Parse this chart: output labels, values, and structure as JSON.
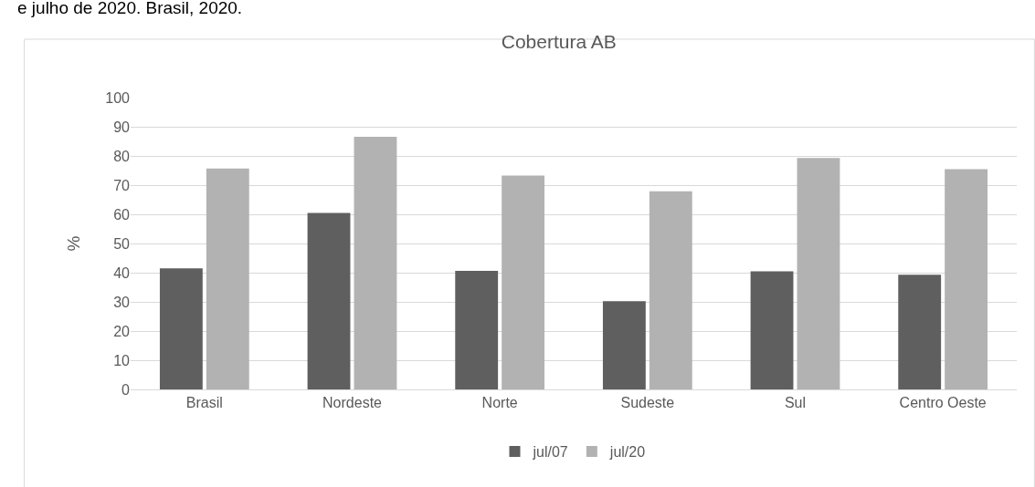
{
  "chart_data": {
    "type": "bar",
    "title": "Cobertura AB",
    "ylabel": "%",
    "annotations": [
      "e julho de 2020. Brasil, 2020."
    ],
    "categories": [
      "Brasil",
      "Nordeste",
      "Norte",
      "Sudeste",
      "Sul",
      "Centro Oeste"
    ],
    "series": [
      {
        "name": "jul/07",
        "color": "#5f5f5f",
        "values": [
          41.5,
          60.5,
          40.6,
          30.2,
          40.5,
          39.3
        ]
      },
      {
        "name": "jul/20",
        "color": "#b2b2b2",
        "values": [
          75.7,
          86.6,
          73.3,
          67.9,
          79.3,
          75.5
        ]
      }
    ],
    "ylim": [
      0,
      100
    ],
    "yticks": [
      0,
      10,
      20,
      30,
      40,
      50,
      60,
      70,
      80,
      90,
      100
    ],
    "grid": "y",
    "legend": "bottom"
  }
}
